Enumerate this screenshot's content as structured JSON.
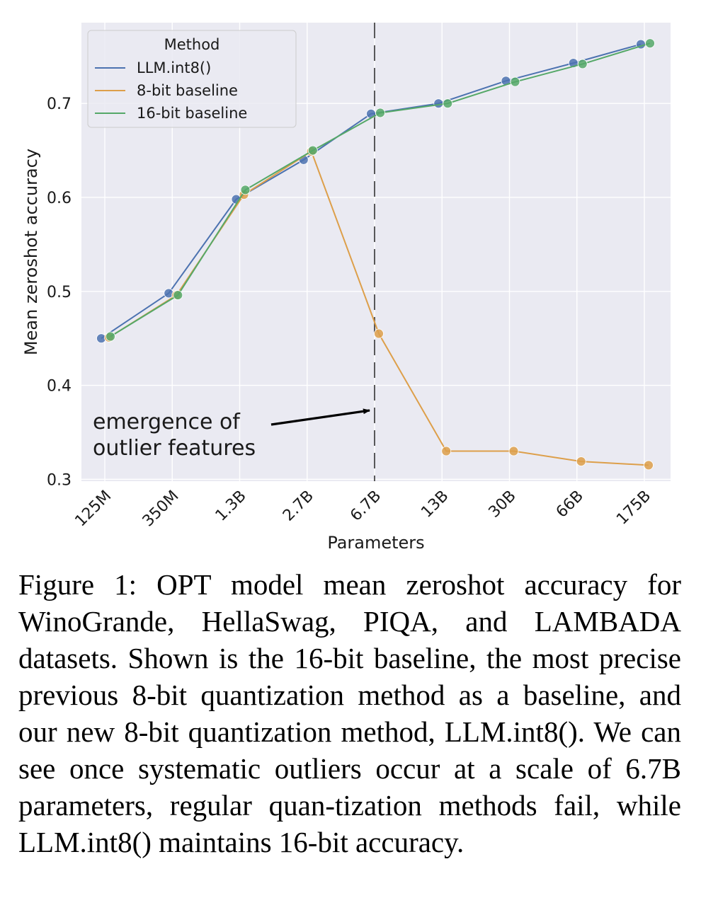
{
  "chart_data": {
    "type": "line",
    "xlabel": "Parameters",
    "ylabel": "Mean zeroshot accuracy",
    "categories": [
      "125M",
      "350M",
      "1.3B",
      "2.7B",
      "6.7B",
      "13B",
      "30B",
      "66B",
      "175B"
    ],
    "yticks": [
      "0.3",
      "0.4",
      "0.5",
      "0.6",
      "0.7"
    ],
    "ylim": [
      0.298,
      0.786
    ],
    "grid": true,
    "legend": {
      "title": "Method",
      "position": "top-left"
    },
    "series": [
      {
        "name": "LLM.int8()",
        "color": "#4c72b0",
        "values": [
          0.45,
          0.498,
          0.598,
          0.64,
          0.689,
          0.7,
          0.724,
          0.743,
          0.763
        ]
      },
      {
        "name": "8-bit baseline",
        "color": "#dd9f4a",
        "values": [
          0.451,
          0.496,
          0.603,
          0.649,
          0.455,
          0.33,
          0.33,
          0.319,
          0.315
        ]
      },
      {
        "name": "16-bit baseline",
        "color": "#55a868",
        "values": [
          0.452,
          0.496,
          0.608,
          0.65,
          0.69,
          0.7,
          0.723,
          0.742,
          0.764
        ]
      }
    ],
    "vline": {
      "category": "6.7B"
    },
    "annotation": {
      "lines": [
        "emergence of",
        "outlier features"
      ]
    }
  },
  "caption": "Figure 1: OPT model mean zeroshot accuracy for WinoGrande, HellaSwag, PIQA, and LAMBADA datasets.  Shown is the 16-bit baseline, the most precise previous 8-bit quantization method as a baseline, and our new 8-bit quantization method, LLM.int8(). We can see once systematic outliers occur at a scale of 6.7B parameters, regular quan-tization methods fail, while LLM.int8() maintains 16-bit accuracy."
}
